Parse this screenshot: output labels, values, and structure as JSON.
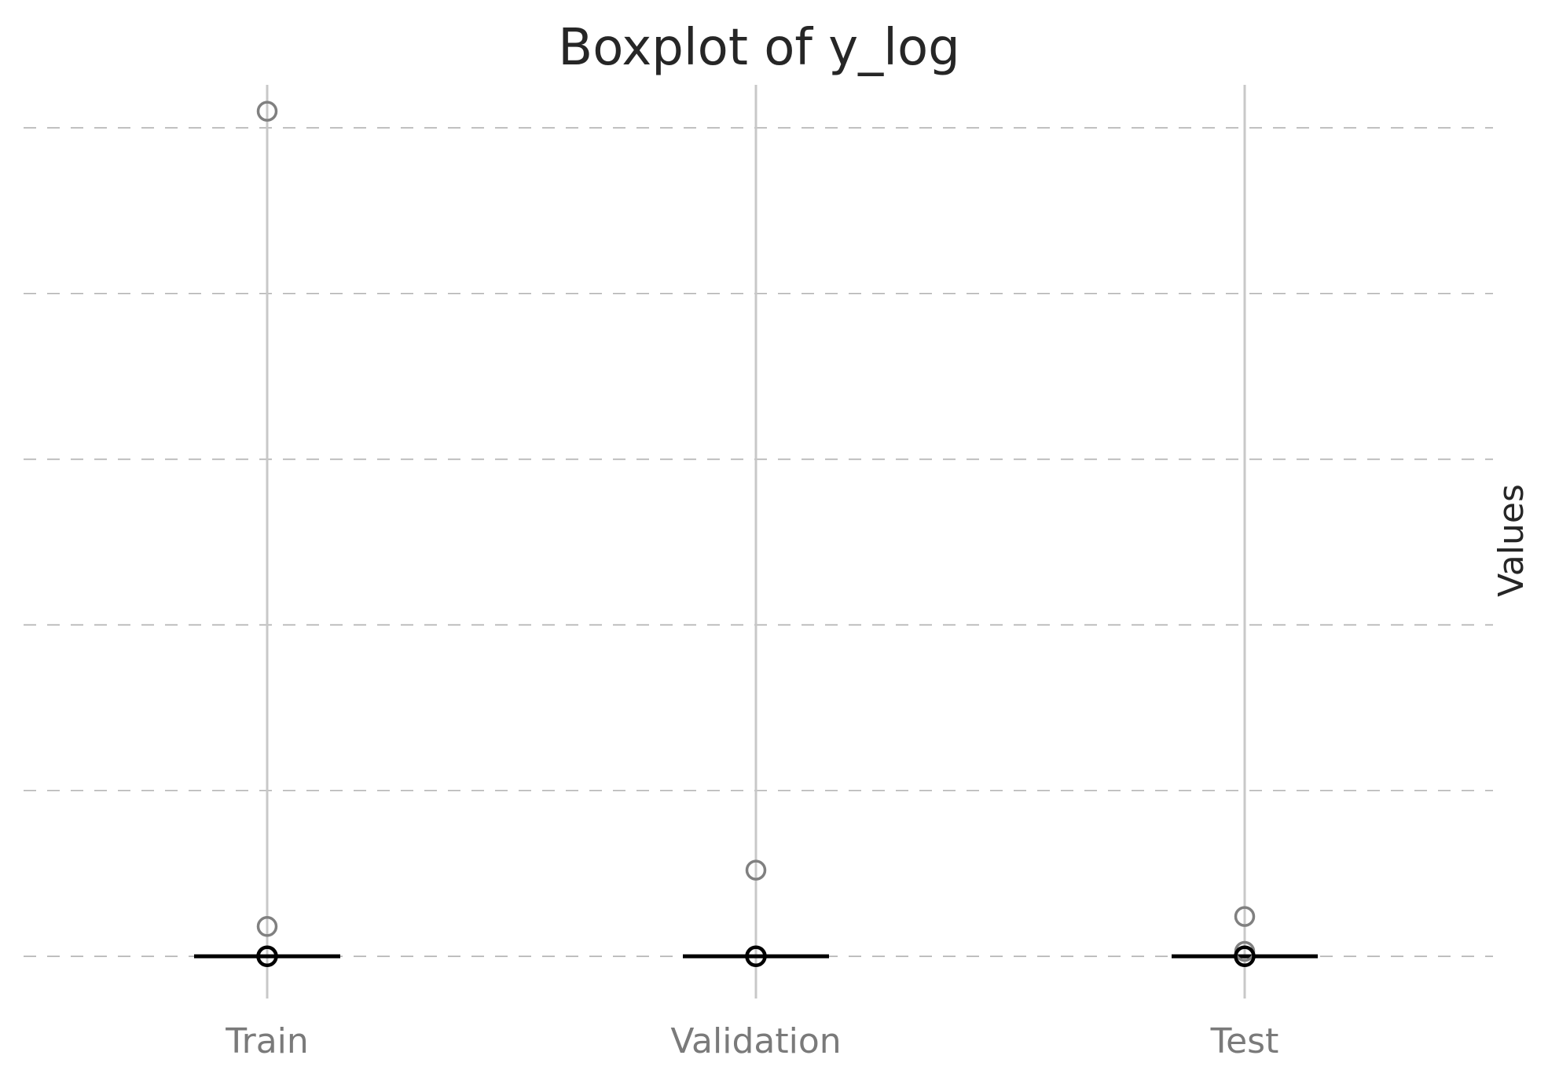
{
  "chart_data": {
    "type": "box",
    "title": "Boxplot of y_log",
    "xlabel": "",
    "ylabel": "Values",
    "categories": [
      "Train",
      "Validation",
      "Test"
    ],
    "ylim": [
      -0.25,
      5.25
    ],
    "grid": {
      "y": true,
      "style": "dashed",
      "x_lines_at_categories": true
    },
    "boxes": [
      {
        "category": "Train",
        "median": 0,
        "q1": 0,
        "q3": 0,
        "whisker_low": 0,
        "whisker_high": 0,
        "outliers": [
          0.18,
          5.1
        ]
      },
      {
        "category": "Validation",
        "median": 0,
        "q1": 0,
        "q3": 0,
        "whisker_low": 0,
        "whisker_high": 0,
        "outliers": [
          0.52
        ]
      },
      {
        "category": "Test",
        "median": 0,
        "q1": 0,
        "q3": 0,
        "whisker_low": 0,
        "whisker_high": 0,
        "outliers": [
          0.03,
          0.24
        ]
      }
    ],
    "colors": {
      "median": "#000000",
      "outlier": "#808080",
      "grid": "#b0b0b0",
      "category_line": "#c8c8c8"
    }
  }
}
